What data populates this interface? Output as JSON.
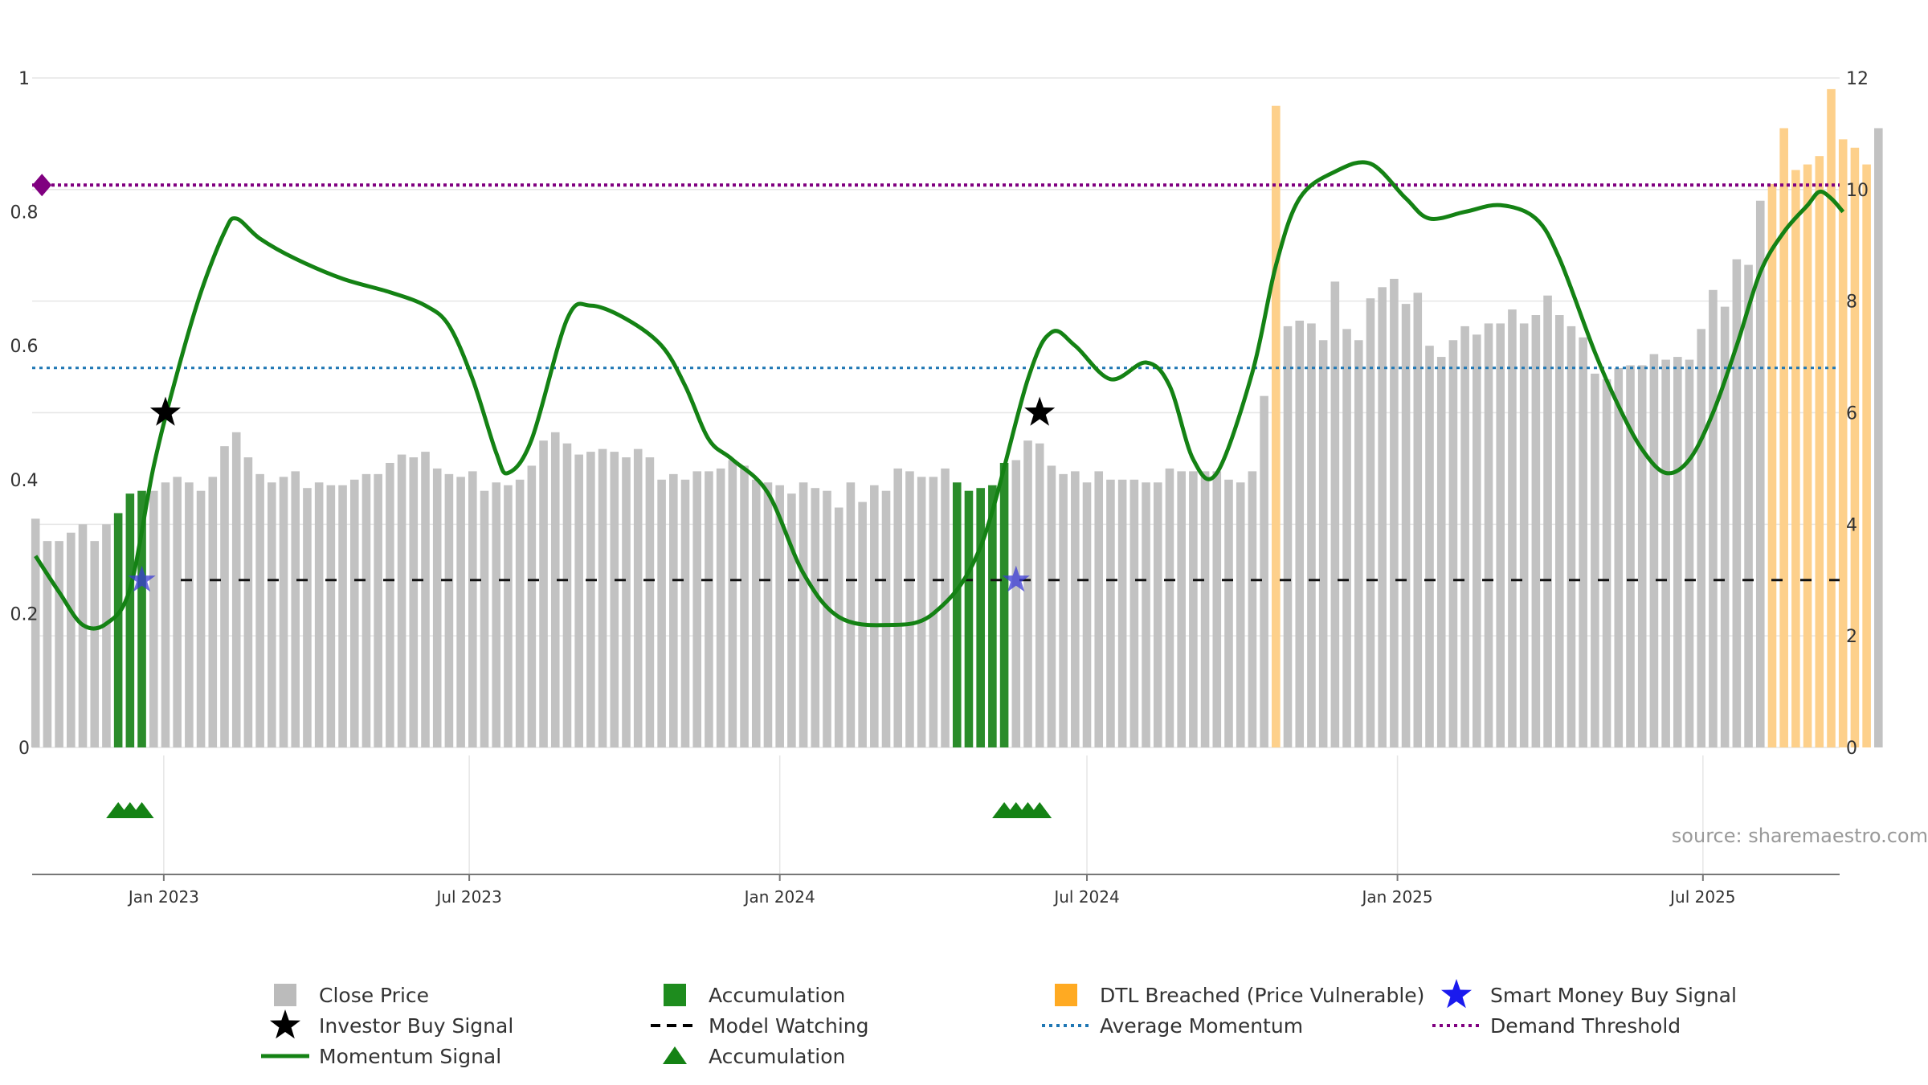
{
  "chart_data": {
    "type": "bar",
    "title": "",
    "source": "source: sharemaestro.com",
    "x_ticks": [
      "Jan 2023",
      "Jul 2023",
      "Jan 2024",
      "Jul 2024",
      "Jan 2025",
      "Jul 2025"
    ],
    "x_tick_dates": [
      "2023-01-01",
      "2023-07-01",
      "2024-01-01",
      "2024-07-01",
      "2025-01-01",
      "2025-07-01"
    ],
    "x_range": [
      "2022-10-15",
      "2025-09-20"
    ],
    "y_left": {
      "ticks": [
        "0",
        "0.2",
        "0.4",
        "0.6",
        "0.8",
        "1"
      ],
      "range": [
        0,
        1
      ]
    },
    "y_right": {
      "ticks": [
        "0",
        "2",
        "4",
        "6",
        "8",
        "10",
        "12"
      ],
      "range": [
        0,
        12
      ]
    },
    "close_price_series": {
      "name": "Close Price",
      "start_date": "2022-10-17",
      "interval_days": 7,
      "values": [
        4.1,
        3.7,
        3.7,
        3.85,
        4.0,
        3.7,
        4.0,
        4.2,
        4.55,
        4.6,
        4.6,
        4.75,
        4.85,
        4.75,
        4.6,
        4.85,
        5.4,
        5.65,
        5.2,
        4.9,
        4.75,
        4.85,
        4.95,
        4.65,
        4.75,
        4.7,
        4.7,
        4.8,
        4.9,
        4.9,
        5.1,
        5.25,
        5.2,
        5.3,
        5.0,
        4.9,
        4.85,
        4.95,
        4.6,
        4.75,
        4.7,
        4.8,
        5.05,
        5.5,
        5.65,
        5.45,
        5.25,
        5.3,
        5.35,
        5.3,
        5.2,
        5.35,
        5.2,
        4.8,
        4.9,
        4.8,
        4.95,
        4.95,
        5.0,
        5.15,
        5.05,
        4.8,
        4.75,
        4.7,
        4.55,
        4.75,
        4.65,
        4.6,
        4.3,
        4.75,
        4.4,
        4.7,
        4.6,
        5.0,
        4.95,
        4.85,
        4.85,
        5.0,
        4.75,
        4.6,
        4.65,
        4.7,
        5.1,
        5.15,
        5.5,
        5.45,
        5.05,
        4.9,
        4.95,
        4.75,
        4.95,
        4.8,
        4.8,
        4.8,
        4.75,
        4.75,
        5.0,
        4.95,
        4.95,
        4.95,
        4.95,
        4.8,
        4.75,
        4.95,
        6.3,
        11.5,
        7.55,
        7.65,
        7.6,
        7.3,
        8.35,
        7.5,
        7.3,
        8.05,
        8.25,
        8.4,
        7.95,
        8.15,
        7.2,
        7.0,
        7.3,
        7.55,
        7.4,
        7.6,
        7.6,
        7.85,
        7.6,
        7.75,
        8.1,
        7.75,
        7.55,
        7.35,
        6.7,
        6.6,
        6.8,
        6.85,
        6.85,
        7.05,
        6.95,
        7.0,
        6.95,
        7.5,
        8.2,
        7.9,
        8.75,
        8.65,
        9.8,
        10.1,
        11.1,
        10.35,
        10.45,
        10.6,
        11.8,
        10.9,
        10.75,
        10.45,
        11.1
      ]
    },
    "accumulation_bar_indices": [
      7,
      8,
      9,
      78,
      79,
      80,
      81,
      82
    ],
    "dtl_breached_bar_indices": [
      105,
      147,
      148,
      149,
      150,
      151,
      152,
      153,
      154,
      155
    ],
    "momentum_series": {
      "name": "Momentum Signal",
      "points": [
        [
          "2022-10-17",
          0.286
        ],
        [
          "2022-10-31",
          0.232
        ],
        [
          "2022-11-14",
          0.183
        ],
        [
          "2022-11-28",
          0.185
        ],
        [
          "2022-12-12",
          0.237
        ],
        [
          "2022-12-26",
          0.42
        ],
        [
          "2023-01-09",
          0.56
        ],
        [
          "2023-01-23",
          0.68
        ],
        [
          "2023-02-06",
          0.77
        ],
        [
          "2023-02-13",
          0.79
        ],
        [
          "2023-02-27",
          0.76
        ],
        [
          "2023-03-20",
          0.73
        ],
        [
          "2023-04-17",
          0.7
        ],
        [
          "2023-05-15",
          0.68
        ],
        [
          "2023-06-05",
          0.66
        ],
        [
          "2023-06-19",
          0.63
        ],
        [
          "2023-07-03",
          0.55
        ],
        [
          "2023-07-17",
          0.44
        ],
        [
          "2023-07-24",
          0.41
        ],
        [
          "2023-08-07",
          0.46
        ],
        [
          "2023-08-28",
          0.64
        ],
        [
          "2023-09-11",
          0.66
        ],
        [
          "2023-10-02",
          0.64
        ],
        [
          "2023-10-23",
          0.6
        ],
        [
          "2023-11-06",
          0.54
        ],
        [
          "2023-11-20",
          0.46
        ],
        [
          "2023-12-04",
          0.43
        ],
        [
          "2023-12-25",
          0.38
        ],
        [
          "2024-01-15",
          0.26
        ],
        [
          "2024-02-05",
          0.195
        ],
        [
          "2024-03-04",
          0.183
        ],
        [
          "2024-04-01",
          0.2
        ],
        [
          "2024-04-29",
          0.3
        ],
        [
          "2024-05-27",
          0.55
        ],
        [
          "2024-06-10",
          0.62
        ],
        [
          "2024-06-24",
          0.6
        ],
        [
          "2024-07-15",
          0.55
        ],
        [
          "2024-08-05",
          0.575
        ],
        [
          "2024-08-19",
          0.54
        ],
        [
          "2024-09-02",
          0.43
        ],
        [
          "2024-09-16",
          0.41
        ],
        [
          "2024-10-07",
          0.56
        ],
        [
          "2024-10-21",
          0.72
        ],
        [
          "2024-11-04",
          0.82
        ],
        [
          "2024-11-25",
          0.86
        ],
        [
          "2024-12-16",
          0.872
        ],
        [
          "2025-01-06",
          0.82
        ],
        [
          "2025-01-20",
          0.79
        ],
        [
          "2025-02-10",
          0.8
        ],
        [
          "2025-03-03",
          0.81
        ],
        [
          "2025-03-24",
          0.79
        ],
        [
          "2025-04-07",
          0.73
        ],
        [
          "2025-04-28",
          0.59
        ],
        [
          "2025-05-12",
          0.51
        ],
        [
          "2025-05-26",
          0.445
        ],
        [
          "2025-06-09",
          0.41
        ],
        [
          "2025-06-23",
          0.43
        ],
        [
          "2025-07-07",
          0.5
        ],
        [
          "2025-07-21",
          0.6
        ],
        [
          "2025-08-04",
          0.71
        ],
        [
          "2025-08-18",
          0.77
        ],
        [
          "2025-09-01",
          0.81
        ],
        [
          "2025-09-08",
          0.83
        ],
        [
          "2025-09-15",
          0.82
        ],
        [
          "2025-09-22",
          0.8
        ]
      ]
    },
    "average_momentum": 0.567,
    "demand_threshold": 0.84,
    "model_watching_level": 0.25,
    "investor_buy_signals": [
      [
        "2023-01-02",
        0.5
      ],
      [
        "2024-06-03",
        0.5
      ]
    ],
    "smart_money_buy_signals": [
      [
        "2022-12-19",
        0.25
      ],
      [
        "2024-05-20",
        0.25
      ]
    ],
    "accumulation_markers": [
      "2022-12-05",
      "2022-12-12",
      "2022-12-19",
      "2024-05-13",
      "2024-05-20",
      "2024-05-27",
      "2024-06-03"
    ],
    "demand_threshold_marker": [
      "2022-10-17",
      0.84
    ],
    "legend": [
      {
        "label": "Close Price",
        "kind": "square",
        "color": "#bbbbbb"
      },
      {
        "label": "Accumulation",
        "kind": "square",
        "color": "#1e8c1e"
      },
      {
        "label": "DTL Breached (Price Vulnerable)",
        "kind": "square",
        "color": "#ffaa22"
      },
      {
        "label": "Smart Money Buy Signal",
        "kind": "star",
        "color": "#1a1aee"
      },
      {
        "label": "Investor Buy Signal",
        "kind": "star",
        "color": "#000000"
      },
      {
        "label": "Model Watching",
        "kind": "dash",
        "color": "#000000"
      },
      {
        "label": "Average Momentum",
        "kind": "dot",
        "color": "#1f77b4"
      },
      {
        "label": "Demand Threshold",
        "kind": "dot",
        "color": "#800080"
      },
      {
        "label": "Momentum Signal",
        "kind": "line",
        "color": "#148214"
      },
      {
        "label": "Accumulation",
        "kind": "triangle",
        "color": "#148214"
      }
    ]
  },
  "colors": {
    "close": "#c2c2c2",
    "accumulation_bar": "#2a8c2a",
    "dtl_bar": "#fdd08b",
    "momentum": "#148214",
    "avg_momentum": "#1f77b4",
    "demand": "#800080",
    "grid": "#e6e6e6",
    "axis": "#777777"
  }
}
